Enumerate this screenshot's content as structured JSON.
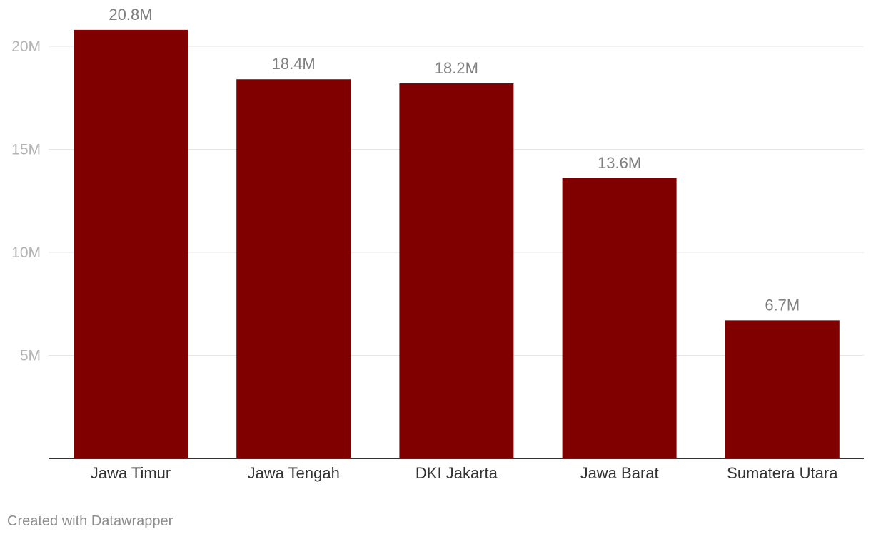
{
  "credit": "Created with Datawrapper",
  "colors": {
    "bar": "#800000",
    "grid": "#e6e6e6",
    "axis": "#333333",
    "tick_label": "#b3b3b3",
    "value_label": "#808080",
    "category_label": "#333333"
  },
  "chart_data": {
    "type": "bar",
    "categories": [
      "Jawa Timur",
      "Jawa Tengah",
      "DKI Jakarta",
      "Jawa Barat",
      "Sumatera Utara"
    ],
    "values": [
      20.8,
      18.4,
      18.2,
      13.6,
      6.7
    ],
    "value_labels": [
      "20.8M",
      "18.4M",
      "18.2M",
      "13.6M",
      "6.7M"
    ],
    "yticks": [
      5,
      10,
      15,
      20
    ],
    "ytick_labels": [
      "5M",
      "10M",
      "15M",
      "20M"
    ],
    "ylim": [
      0,
      22.3
    ],
    "grid": true,
    "title": "",
    "xlabel": "",
    "ylabel": ""
  }
}
